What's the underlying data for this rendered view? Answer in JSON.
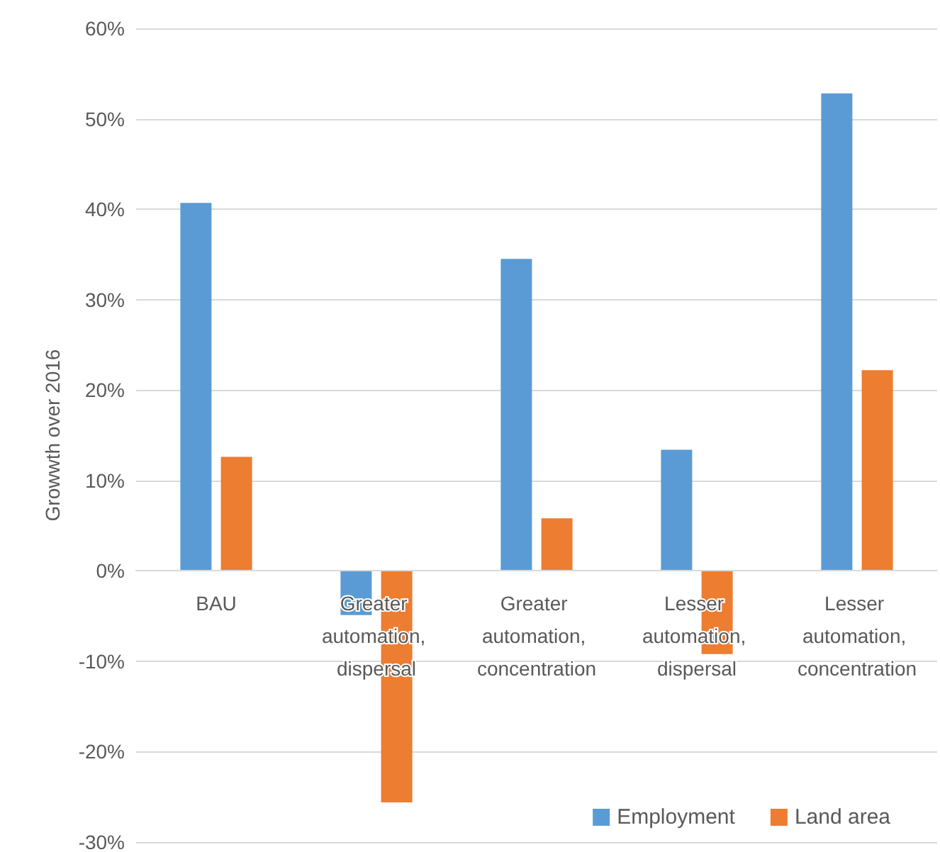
{
  "chart_data": {
    "type": "bar",
    "ylabel": "Growwth over 2016",
    "categories": [
      "BAU",
      "Greater automation, dispersal",
      "Greater automation, concentration",
      "Lesser automation, dispersal",
      "Lesser automation, concentration"
    ],
    "series": [
      {
        "name": "Employment",
        "color": "#5b9bd5",
        "values": [
          40.7,
          -4.9,
          34.5,
          13.4,
          52.8
        ]
      },
      {
        "name": "Land area",
        "color": "#ed7d31",
        "values": [
          12.6,
          -25.6,
          5.8,
          -9.2,
          22.2
        ]
      }
    ],
    "ylim": [
      -30,
      60
    ],
    "yticks": [
      {
        "value": -30,
        "label": "-30%"
      },
      {
        "value": -20,
        "label": "-20%"
      },
      {
        "value": -10,
        "label": "-10%"
      },
      {
        "value": 0,
        "label": "0%"
      },
      {
        "value": 10,
        "label": "10%"
      },
      {
        "value": 20,
        "label": "20%"
      },
      {
        "value": 30,
        "label": "30%"
      },
      {
        "value": 40,
        "label": "40%"
      },
      {
        "value": 50,
        "label": "50%"
      },
      {
        "value": 60,
        "label": "60%"
      }
    ],
    "grid": "y",
    "legend": "bottom right"
  }
}
